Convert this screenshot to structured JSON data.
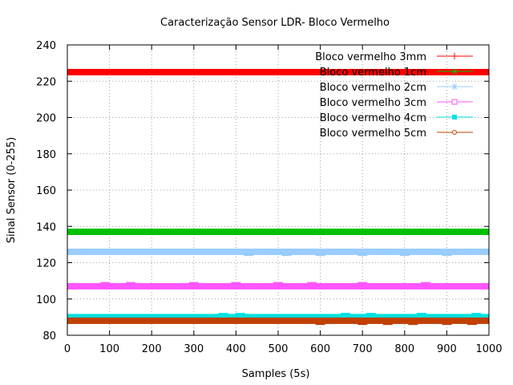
{
  "chart_data": {
    "type": "line",
    "title": "Caracterização Sensor LDR- Bloco Vermelho",
    "xlabel": "Samples (5s)",
    "ylabel": "Sinal Sensor (0-255)",
    "xlim": [
      0,
      1000
    ],
    "ylim": [
      80,
      240
    ],
    "xticks": [
      "0",
      "100",
      "200",
      "300",
      "400",
      "500",
      "600",
      "700",
      "800",
      "900",
      "1000"
    ],
    "yticks": [
      "80",
      "100",
      "120",
      "140",
      "160",
      "180",
      "200",
      "220",
      "240"
    ],
    "grid": true,
    "legend_position": "top-right",
    "series": [
      {
        "name": "Bloco vermelho 3mm",
        "color": "#ff0000",
        "marker": "plus",
        "y_main": 225,
        "noise": []
      },
      {
        "name": "Bloco vermelho 1cm",
        "color": "#00c000",
        "marker": "x",
        "y_main": 137,
        "noise": []
      },
      {
        "name": "Bloco vermelho 2cm",
        "color": "#99ccff",
        "marker": "star",
        "y_main": 126,
        "noise": [
          [
            430,
            125
          ],
          [
            520,
            125
          ],
          [
            600,
            125
          ],
          [
            700,
            125
          ],
          [
            800,
            125
          ],
          [
            900,
            125
          ]
        ]
      },
      {
        "name": "Bloco vermelho 3cm",
        "color": "#ff55ff",
        "marker": "square",
        "y_main": 107,
        "noise": [
          [
            90,
            108
          ],
          [
            150,
            108
          ],
          [
            300,
            108
          ],
          [
            400,
            108
          ],
          [
            500,
            108
          ],
          [
            580,
            108
          ],
          [
            700,
            108
          ],
          [
            850,
            108
          ]
        ]
      },
      {
        "name": "Bloco vermelho 4cm",
        "color": "#00e0e0",
        "marker": "filled-square",
        "y_main": 90,
        "noise": [
          [
            370,
            91
          ],
          [
            410,
            91
          ],
          [
            660,
            91
          ],
          [
            720,
            91
          ],
          [
            840,
            91
          ],
          [
            970,
            91
          ]
        ]
      },
      {
        "name": "Bloco vermelho 5cm",
        "color": "#c04000",
        "marker": "circle",
        "y_main": 88,
        "noise": [
          [
            600,
            87
          ],
          [
            700,
            87
          ],
          [
            760,
            87
          ],
          [
            820,
            87
          ],
          [
            900,
            87
          ],
          [
            960,
            87
          ]
        ]
      }
    ]
  }
}
